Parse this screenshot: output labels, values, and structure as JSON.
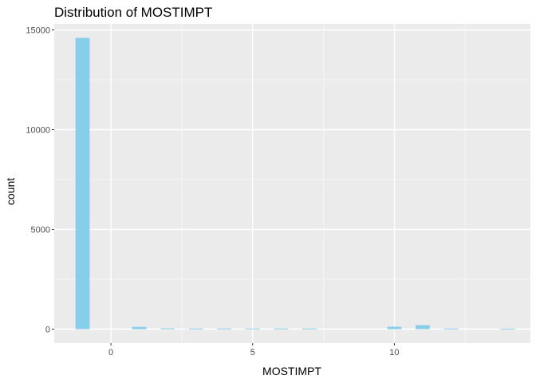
{
  "chart_data": {
    "type": "bar",
    "title": "Distribution of MOSTIMPT",
    "xlabel": "MOSTIMPT",
    "ylabel": "count",
    "xlim": [
      -2.0,
      14.8
    ],
    "ylim": [
      -700,
      15300
    ],
    "x_ticks": [
      0,
      5,
      10
    ],
    "x_tick_labels": [
      "0",
      "5",
      "10"
    ],
    "y_ticks": [
      0,
      5000,
      10000,
      15000
    ],
    "y_tick_labels": [
      "0",
      "5000",
      "10000",
      "15000"
    ],
    "bin_width": 0.5,
    "bars": [
      {
        "x": -1,
        "count": 14600
      },
      {
        "x": 1,
        "count": 110
      },
      {
        "x": 2,
        "count": 35
      },
      {
        "x": 3,
        "count": 30
      },
      {
        "x": 4,
        "count": 30
      },
      {
        "x": 5,
        "count": 30
      },
      {
        "x": 6,
        "count": 30
      },
      {
        "x": 7,
        "count": 30
      },
      {
        "x": 10,
        "count": 120
      },
      {
        "x": 11,
        "count": 200
      },
      {
        "x": 12,
        "count": 30
      },
      {
        "x": 14,
        "count": 25
      }
    ],
    "grid": true,
    "colors": {
      "bar": "#87ceeb",
      "panel_background": "#ebebeb",
      "grid_major": "#ffffff",
      "grid_minor": "#f5f5f5"
    }
  }
}
